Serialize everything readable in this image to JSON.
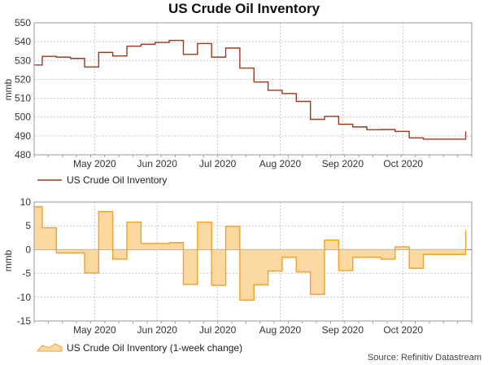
{
  "title": "US Crude Oil Inventory",
  "source": "Source: Refinitiv Datastream",
  "colors": {
    "inventory_line": "#a0391f",
    "change_line": "#f2a12a",
    "change_fill": "#fdd9a2",
    "grid": "#c8c8c8"
  },
  "chart_data": [
    {
      "type": "line",
      "title": "US Crude Oil Inventory",
      "xlabel": "",
      "ylabel": "mmb",
      "ylim": [
        480,
        550
      ],
      "yticks": [
        480,
        490,
        500,
        510,
        520,
        530,
        540,
        550
      ],
      "xlim_days": [
        0,
        217
      ],
      "x_tick_labels": [
        {
          "label": "May 2020",
          "day": 30
        },
        {
          "label": "Jun 2020",
          "day": 61
        },
        {
          "label": "Jul 2020",
          "day": 91
        },
        {
          "label": "Aug 2020",
          "day": 122
        },
        {
          "label": "Sep 2020",
          "day": 153
        },
        {
          "label": "Oct 2020",
          "day": 183
        }
      ],
      "step_style": "steps-post",
      "x_days": [
        0,
        4,
        11,
        18,
        25,
        32,
        39,
        46,
        53,
        60,
        67,
        74,
        81,
        88,
        95,
        102,
        109,
        116,
        123,
        130,
        137,
        144,
        151,
        158,
        165,
        172,
        179,
        186,
        193,
        200,
        207,
        214
      ],
      "values": [
        527.6,
        532.2,
        531.8,
        531.1,
        526.6,
        534.3,
        532.4,
        537.6,
        538.6,
        539.6,
        540.7,
        533.3,
        539.0,
        531.8,
        536.6,
        526.0,
        518.6,
        514.2,
        512.5,
        508.3,
        498.8,
        500.4,
        496.2,
        494.8,
        493.3,
        493.4,
        492.4,
        489.0,
        488.3,
        488.3,
        488.3,
        492.4
      ],
      "series": [
        {
          "name": "US Crude Oil Inventory",
          "color": "#a0391f"
        }
      ],
      "legend": "bottom-left",
      "grid": true
    },
    {
      "type": "area",
      "title": "",
      "xlabel": "",
      "ylabel": "mmb",
      "ylim": [
        -15,
        10
      ],
      "yticks": [
        -15,
        -10,
        -5,
        0,
        5,
        10
      ],
      "xlim_days": [
        0,
        217
      ],
      "x_tick_labels": [
        {
          "label": "May 2020",
          "day": 30
        },
        {
          "label": "Jun 2020",
          "day": 61
        },
        {
          "label": "Jul 2020",
          "day": 91
        },
        {
          "label": "Aug 2020",
          "day": 122
        },
        {
          "label": "Sep 2020",
          "day": 153
        },
        {
          "label": "Oct 2020",
          "day": 183
        }
      ],
      "step_style": "steps-post",
      "x_days": [
        0,
        4,
        11,
        18,
        25,
        32,
        39,
        46,
        53,
        60,
        67,
        74,
        81,
        88,
        95,
        102,
        109,
        116,
        123,
        130,
        137,
        144,
        151,
        158,
        165,
        172,
        179,
        186,
        193,
        200,
        207,
        214
      ],
      "values": [
        9.0,
        4.6,
        -0.7,
        -0.7,
        -4.9,
        8.0,
        -2.0,
        5.8,
        1.3,
        1.3,
        1.5,
        -7.3,
        5.8,
        -7.5,
        4.9,
        -10.6,
        -7.4,
        -4.5,
        -1.6,
        -4.7,
        -9.4,
        2.0,
        -4.4,
        -1.6,
        -1.6,
        -2.0,
        0.6,
        -3.9,
        -1.0,
        -1.0,
        -1.0,
        4.1
      ],
      "series": [
        {
          "name": "US Crude Oil Inventory (1-week change)",
          "color": "#f2a12a"
        }
      ],
      "legend": "bottom-left",
      "grid": true
    }
  ]
}
